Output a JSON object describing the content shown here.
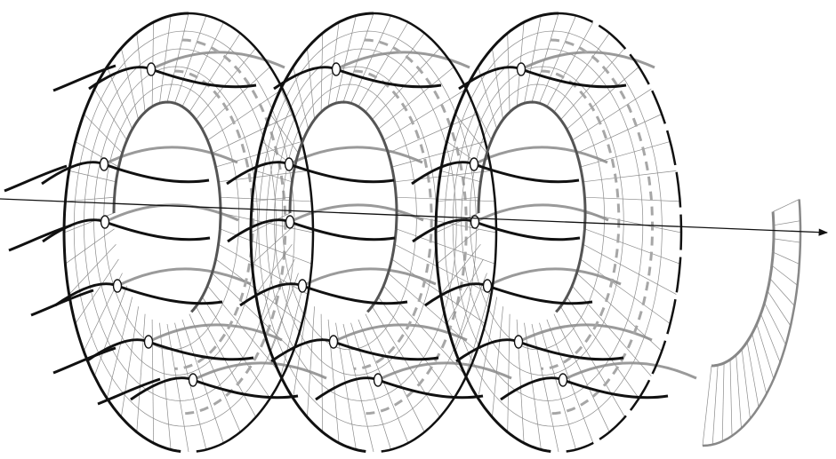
{
  "figure": {
    "subject": "helical-surface-with-threaded-strands",
    "turns": 3,
    "colors": {
      "background": "#ffffff",
      "outline": "#111111",
      "grid": "#8c8c8c",
      "strand_front": "#111111",
      "strand_back": "#9a9a9a",
      "dashed_curve": "#a6a6a6",
      "axis": "#111111"
    },
    "axis": {
      "arrow": true,
      "direction": "right"
    },
    "labels": []
  }
}
